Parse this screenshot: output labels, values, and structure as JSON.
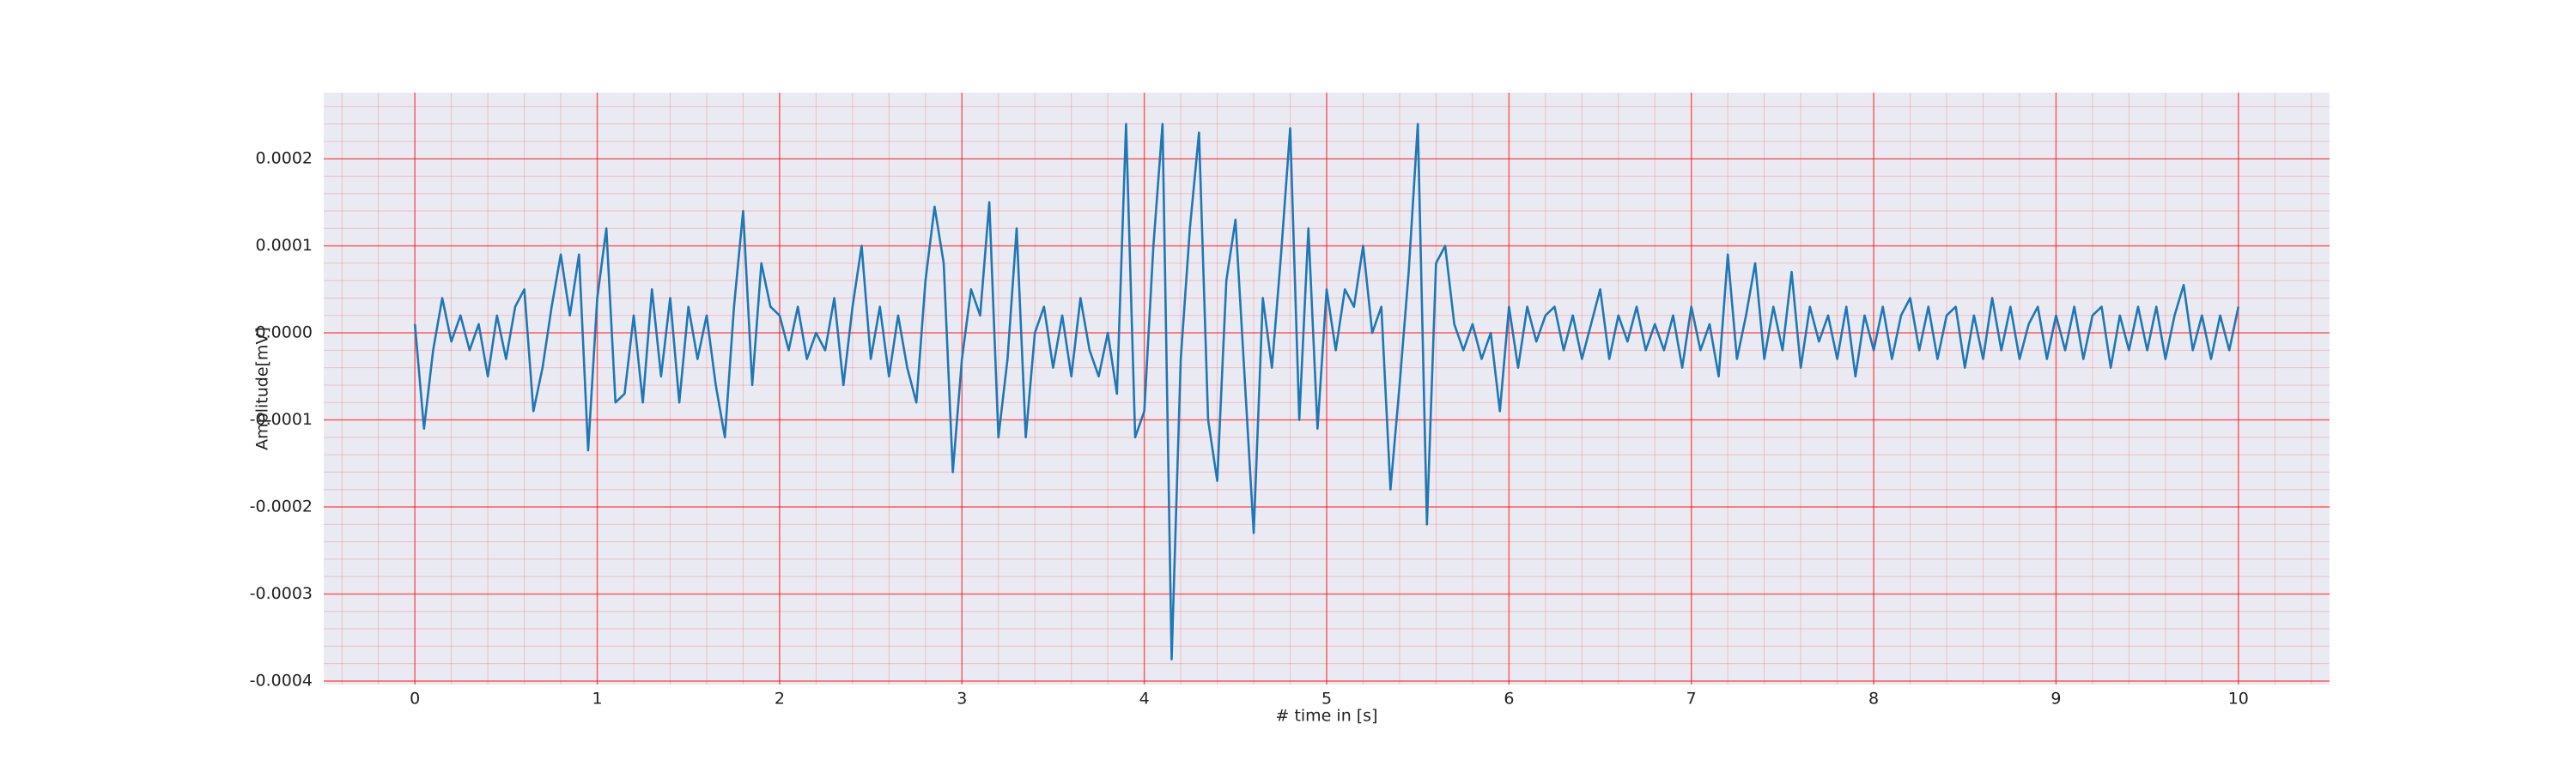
{
  "chart_data": {
    "type": "line",
    "x_label": "# time in [s]",
    "y_label": "Amplitude[mV]",
    "x": [
      0,
      0.05,
      0.1,
      0.15,
      0.2,
      0.25,
      0.3,
      0.35,
      0.4,
      0.45,
      0.5,
      0.55,
      0.6,
      0.65,
      0.7,
      0.75,
      0.8,
      0.85,
      0.9,
      0.95,
      1,
      1.05,
      1.1,
      1.15,
      1.2,
      1.25,
      1.3,
      1.35,
      1.4,
      1.45,
      1.5,
      1.55,
      1.6,
      1.65,
      1.7,
      1.75,
      1.8,
      1.85,
      1.9,
      1.95,
      2,
      2.05,
      2.1,
      2.15,
      2.2,
      2.25,
      2.3,
      2.35,
      2.4,
      2.45,
      2.5,
      2.55,
      2.6,
      2.65,
      2.7,
      2.75,
      2.8,
      2.85,
      2.9,
      2.95,
      3,
      3.05,
      3.1,
      3.15,
      3.2,
      3.25,
      3.3,
      3.35,
      3.4,
      3.45,
      3.5,
      3.55,
      3.6,
      3.65,
      3.7,
      3.75,
      3.8,
      3.85,
      3.9,
      3.95,
      4,
      4.05,
      4.1,
      4.15,
      4.2,
      4.25,
      4.3,
      4.35,
      4.4,
      4.45,
      4.5,
      4.55,
      4.6,
      4.65,
      4.7,
      4.75,
      4.8,
      4.85,
      4.9,
      4.95,
      5,
      5.05,
      5.1,
      5.15,
      5.2,
      5.25,
      5.3,
      5.35,
      5.4,
      5.45,
      5.5,
      5.55,
      5.6,
      5.65,
      5.7,
      5.75,
      5.8,
      5.85,
      5.9,
      5.95,
      6,
      6.05,
      6.1,
      6.15,
      6.2,
      6.25,
      6.3,
      6.35,
      6.4,
      6.45,
      6.5,
      6.55,
      6.6,
      6.65,
      6.7,
      6.75,
      6.8,
      6.85,
      6.9,
      6.95,
      7,
      7.05,
      7.1,
      7.15,
      7.2,
      7.25,
      7.3,
      7.35,
      7.4,
      7.45,
      7.5,
      7.55,
      7.6,
      7.65,
      7.7,
      7.75,
      7.8,
      7.85,
      7.9,
      7.95,
      8,
      8.05,
      8.1,
      8.15,
      8.2,
      8.25,
      8.3,
      8.35,
      8.4,
      8.45,
      8.5,
      8.55,
      8.6,
      8.65,
      8.7,
      8.75,
      8.8,
      8.85,
      8.9,
      8.95,
      9,
      9.05,
      9.1,
      9.15,
      9.2,
      9.25,
      9.3,
      9.35,
      9.4,
      9.45,
      9.5,
      9.55,
      9.6,
      9.65,
      9.7,
      9.75,
      9.8,
      9.85,
      9.9,
      9.95,
      10
    ],
    "values": [
      1e-05,
      -0.00011,
      -2e-05,
      4e-05,
      -1e-05,
      2e-05,
      -2e-05,
      1e-05,
      -5e-05,
      2e-05,
      -3e-05,
      3e-05,
      5e-05,
      -9e-05,
      -4e-05,
      3e-05,
      9e-05,
      2e-05,
      9e-05,
      -0.000135,
      4e-05,
      0.00012,
      -8e-05,
      -7e-05,
      2e-05,
      -8e-05,
      5e-05,
      -5e-05,
      4e-05,
      -8e-05,
      3e-05,
      -3e-05,
      2e-05,
      -6e-05,
      -0.00012,
      3e-05,
      0.00014,
      -6e-05,
      8e-05,
      3e-05,
      2e-05,
      -2e-05,
      3e-05,
      -3e-05,
      0,
      -2e-05,
      4e-05,
      -6e-05,
      3e-05,
      0.0001,
      -3e-05,
      3e-05,
      -5e-05,
      2e-05,
      -4e-05,
      -8e-05,
      6e-05,
      0.000145,
      8e-05,
      -0.00016,
      -3e-05,
      5e-05,
      2e-05,
      0.00015,
      -0.00012,
      -3e-05,
      0.00012,
      -0.00012,
      0,
      3e-05,
      -4e-05,
      2e-05,
      -5e-05,
      4e-05,
      -2e-05,
      -5e-05,
      0,
      -7e-05,
      0.00024,
      -0.00012,
      -9e-05,
      0.0001,
      0.00024,
      -0.000375,
      -3e-05,
      0.00012,
      0.00023,
      -0.0001,
      -0.00017,
      6e-05,
      0.00013,
      -5e-05,
      -0.00023,
      4e-05,
      -4e-05,
      9e-05,
      0.000235,
      -0.0001,
      0.00012,
      -0.00011,
      5e-05,
      -2e-05,
      5e-05,
      3e-05,
      0.0001,
      0,
      3e-05,
      -0.00018,
      -6e-05,
      7e-05,
      0.00024,
      -0.00022,
      8e-05,
      0.0001,
      1e-05,
      -2e-05,
      1e-05,
      -3e-05,
      0,
      -9e-05,
      3e-05,
      -4e-05,
      3e-05,
      -1e-05,
      2e-05,
      3e-05,
      -2e-05,
      2e-05,
      -3e-05,
      1e-05,
      5e-05,
      -3e-05,
      2e-05,
      -1e-05,
      3e-05,
      -2e-05,
      1e-05,
      -2e-05,
      2e-05,
      -4e-05,
      3e-05,
      -2e-05,
      1e-05,
      -5e-05,
      9e-05,
      -3e-05,
      2e-05,
      8e-05,
      -3e-05,
      3e-05,
      -2e-05,
      7e-05,
      -4e-05,
      3e-05,
      -1e-05,
      2e-05,
      -3e-05,
      3e-05,
      -5e-05,
      2e-05,
      -2e-05,
      3e-05,
      -3e-05,
      2e-05,
      4e-05,
      -2e-05,
      3e-05,
      -3e-05,
      2e-05,
      3e-05,
      -4e-05,
      2e-05,
      -3e-05,
      4e-05,
      -2e-05,
      3e-05,
      -3e-05,
      1e-05,
      3e-05,
      -3e-05,
      2e-05,
      -2e-05,
      3e-05,
      -3e-05,
      2e-05,
      3e-05,
      -4e-05,
      2e-05,
      -2e-05,
      3e-05,
      -2e-05,
      3e-05,
      -3e-05,
      2e-05,
      5.5e-05,
      -2e-05,
      2e-05,
      -3e-05,
      2e-05,
      -2e-05,
      3e-05
    ],
    "color": "#1f77b4",
    "xlim": [
      -0.5,
      10.5
    ],
    "xticks": [
      0,
      1,
      2,
      3,
      4,
      5,
      6,
      7,
      8,
      9,
      10
    ],
    "ylim": [
      -0.000404,
      0.000276
    ],
    "yticks": [
      -0.0004,
      -0.0003,
      -0.0002,
      -0.0001,
      {
        "value": 0,
        "label": "0.0000"
      },
      0.0001,
      0.0002
    ],
    "grid": true,
    "minor_grid": true,
    "grid_color": "#ff0000"
  }
}
